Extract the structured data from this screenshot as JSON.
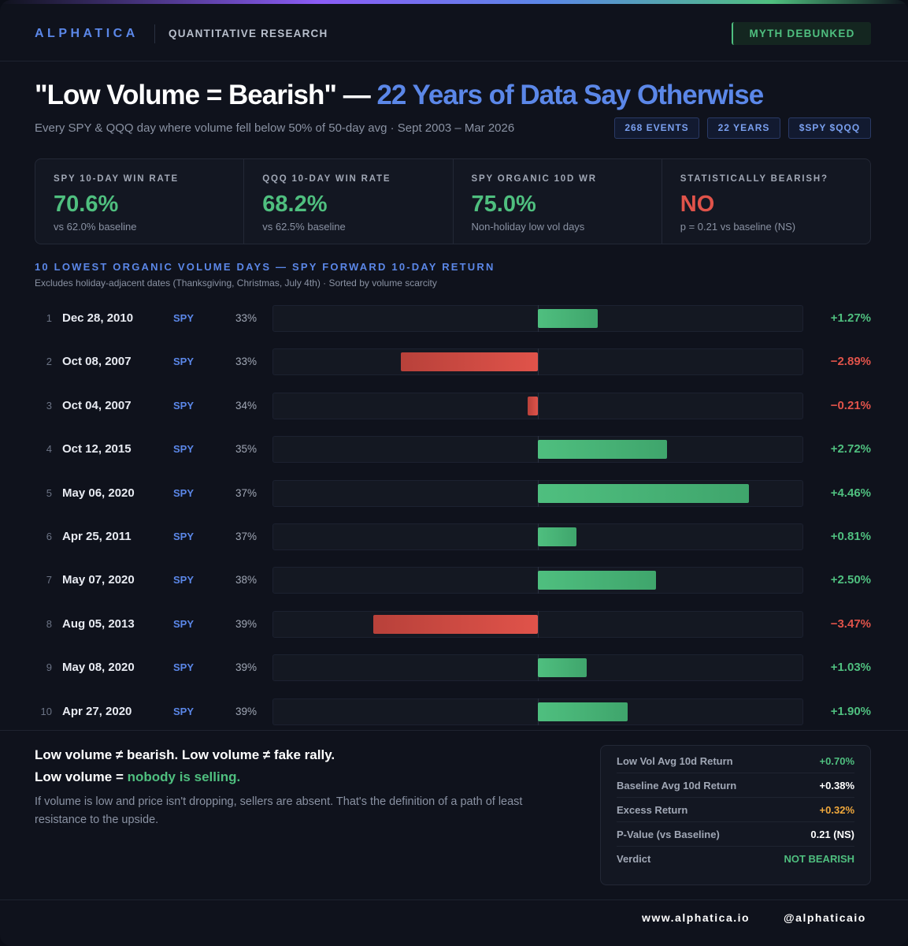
{
  "header": {
    "brand": "ALPHATICA",
    "subtitle": "QUANTITATIVE RESEARCH",
    "badge": "MYTH DEBUNKED"
  },
  "title": {
    "part1": "\"Low Volume = Bearish\" — ",
    "part2": "22 Years of Data Say Otherwise"
  },
  "subtitle": "Every SPY & QQQ day where volume fell below 50% of 50-day avg · Sept 2003 – Mar 2026",
  "pills": [
    "268 EVENTS",
    "22 YEARS",
    "$SPY $QQQ"
  ],
  "cards": [
    {
      "label": "SPY 10-DAY WIN RATE",
      "value": "70.6%",
      "note": "vs 62.0% baseline",
      "color": "#4fbf7f"
    },
    {
      "label": "QQQ 10-DAY WIN RATE",
      "value": "68.2%",
      "note": "vs 62.5% baseline",
      "color": "#4fbf7f"
    },
    {
      "label": "SPY ORGANIC 10D WR",
      "value": "75.0%",
      "note": "Non-holiday low vol days",
      "color": "#4fbf7f"
    },
    {
      "label": "STATISTICALLY BEARISH?",
      "value": "NO",
      "note": "p = 0.21 vs baseline (NS)",
      "color": "#e0534a"
    }
  ],
  "section": {
    "title": "10 LOWEST ORGANIC VOLUME DAYS — SPY FORWARD 10-DAY RETURN",
    "subtitle": "Excludes holiday-adjacent dates (Thanksgiving, Christmas, July 4th) · Sorted by volume scarcity"
  },
  "chart_data": {
    "type": "bar",
    "orientation": "horizontal-diverging",
    "xlim": [
      -5.6,
      5.6
    ],
    "colors": {
      "positive": "#4fbf7f",
      "negative": "#e0534a"
    },
    "rows": [
      {
        "rank": "1",
        "date": "Dec 28, 2010",
        "ticker": "SPY",
        "volume_pct": "33%",
        "value": 1.27,
        "label": "+1.27%"
      },
      {
        "rank": "2",
        "date": "Oct 08, 2007",
        "ticker": "SPY",
        "volume_pct": "33%",
        "value": -2.89,
        "label": "−2.89%"
      },
      {
        "rank": "3",
        "date": "Oct 04, 2007",
        "ticker": "SPY",
        "volume_pct": "34%",
        "value": -0.21,
        "label": "−0.21%"
      },
      {
        "rank": "4",
        "date": "Oct 12, 2015",
        "ticker": "SPY",
        "volume_pct": "35%",
        "value": 2.72,
        "label": "+2.72%"
      },
      {
        "rank": "5",
        "date": "May 06, 2020",
        "ticker": "SPY",
        "volume_pct": "37%",
        "value": 4.46,
        "label": "+4.46%"
      },
      {
        "rank": "6",
        "date": "Apr 25, 2011",
        "ticker": "SPY",
        "volume_pct": "37%",
        "value": 0.81,
        "label": "+0.81%"
      },
      {
        "rank": "7",
        "date": "May 07, 2020",
        "ticker": "SPY",
        "volume_pct": "38%",
        "value": 2.5,
        "label": "+2.50%"
      },
      {
        "rank": "8",
        "date": "Aug 05, 2013",
        "ticker": "SPY",
        "volume_pct": "39%",
        "value": -3.47,
        "label": "−3.47%"
      },
      {
        "rank": "9",
        "date": "May 08, 2020",
        "ticker": "SPY",
        "volume_pct": "39%",
        "value": 1.03,
        "label": "+1.03%"
      },
      {
        "rank": "10",
        "date": "Apr 27, 2020",
        "ticker": "SPY",
        "volume_pct": "39%",
        "value": 1.9,
        "label": "+1.90%"
      }
    ]
  },
  "conclusion": {
    "line1": "Low volume ≠ bearish. Low volume ≠ fake rally.",
    "line2_prefix": "Low volume = ",
    "line2_highlight": "nobody is selling.",
    "body": "If volume is low and price isn't dropping, sellers are absent. That's the definition of a path of least resistance to the upside."
  },
  "summary": [
    {
      "key": "Low Vol Avg 10d Return",
      "value": "+0.70%",
      "color": "#4fbf7f"
    },
    {
      "key": "Baseline Avg 10d Return",
      "value": "+0.38%",
      "color": "#ffffff"
    },
    {
      "key": "Excess Return",
      "value": "+0.32%",
      "color": "#f0a83c"
    },
    {
      "key": "P-Value (vs Baseline)",
      "value": "0.21 (NS)",
      "color": "#ffffff"
    },
    {
      "key": "Verdict",
      "value": "NOT BEARISH",
      "color": "#4fbf7f"
    }
  ],
  "footer": {
    "website": "www.alphatica.io",
    "handle": "@alphaticaio"
  }
}
